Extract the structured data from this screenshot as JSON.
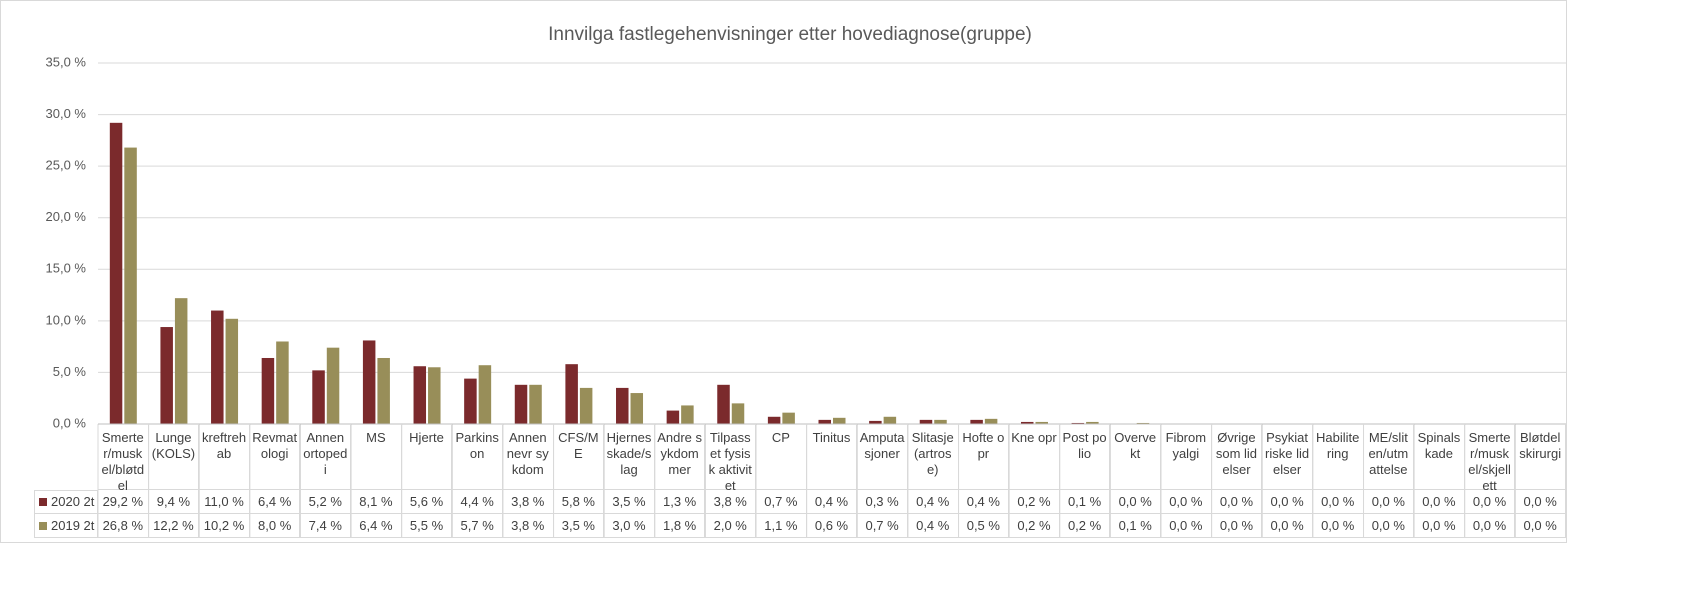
{
  "chart_data": {
    "type": "bar",
    "title": "Innvilga fastlegehenvisninger etter hovediagnose(gruppe)",
    "categories": [
      "Smerter/muskel/bløtdel",
      "Lunge (KOLS)",
      "kreftrehab",
      "Revmatologi",
      "Annen ortopedi",
      "MS",
      "Hjerte",
      "Parkinson",
      "Annen nevr sykdom",
      "CFS/ME",
      "Hjernesskade/slag",
      "Andre sykdommer",
      "Tilpasset fysisk aktivitet",
      "CP",
      "Tinitus",
      "Amputasjoner",
      "Slitasje (artrose)",
      "Hofte opr",
      "Kne opr",
      "Post polio",
      "Overvekt",
      "Fibromyalgi",
      "Øvrige som lidelser",
      "Psykiatriske lidelser",
      "Habilitering",
      "ME/sliten/utmattelse",
      "Spinalskade",
      "Smerter/muskel/skjellett",
      "Bløtdelskirurgi"
    ],
    "series": [
      {
        "name": "2020 2t",
        "color": "#7b2a2c",
        "values": [
          29.2,
          9.4,
          11.0,
          6.4,
          5.2,
          8.1,
          5.6,
          4.4,
          3.8,
          5.8,
          3.5,
          1.3,
          3.8,
          0.7,
          0.4,
          0.3,
          0.4,
          0.4,
          0.2,
          0.1,
          0,
          0,
          0,
          0,
          0,
          0,
          0,
          0,
          0
        ],
        "value_labels": [
          "29,2 %",
          "9,4 %",
          "11,0 %",
          "6,4 %",
          "5,2 %",
          "8,1 %",
          "5,6 %",
          "4,4 %",
          "3,8 %",
          "5,8 %",
          "3,5 %",
          "1,3 %",
          "3,8 %",
          "0,7 %",
          "0,4 %",
          "0,3 %",
          "0,4 %",
          "0,4 %",
          "0,2 %",
          "0,1 %",
          "0,0 %",
          "0,0 %",
          "0,0 %",
          "0,0 %",
          "0,0 %",
          "0,0 %",
          "0,0 %",
          "0,0 %",
          "0,0 %"
        ]
      },
      {
        "name": "2019 2t",
        "color": "#988e59",
        "values": [
          26.8,
          12.2,
          10.2,
          8.0,
          7.4,
          6.4,
          5.5,
          5.7,
          3.8,
          3.5,
          3.0,
          1.8,
          2.0,
          1.1,
          0.6,
          0.7,
          0.4,
          0.5,
          0.2,
          0.2,
          0.1,
          0,
          0,
          0,
          0,
          0,
          0,
          0,
          0
        ],
        "value_labels": [
          "26,8 %",
          "12,2 %",
          "10,2 %",
          "8,0 %",
          "7,4 %",
          "6,4 %",
          "5,5 %",
          "5,7 %",
          "3,8 %",
          "3,5 %",
          "3,0 %",
          "1,8 %",
          "2,0 %",
          "1,1 %",
          "0,6 %",
          "0,7 %",
          "0,4 %",
          "0,5 %",
          "0,2 %",
          "0,2 %",
          "0,1 %",
          "0,0 %",
          "0,0 %",
          "0,0 %",
          "0,0 %",
          "0,0 %",
          "0,0 %",
          "0,0 %",
          "0,0 %"
        ]
      }
    ],
    "ylim": [
      0,
      35
    ],
    "yticks": [
      {
        "value": 0,
        "label": "0,0 %"
      },
      {
        "value": 5,
        "label": "5,0 %"
      },
      {
        "value": 10,
        "label": "10,0 %"
      },
      {
        "value": 15,
        "label": "15,0 %"
      },
      {
        "value": 20,
        "label": "20,0 %"
      },
      {
        "value": 25,
        "label": "25,0 %"
      },
      {
        "value": 30,
        "label": "30,0 %"
      },
      {
        "value": 35,
        "label": "35,0 %"
      }
    ],
    "grid": true
  }
}
